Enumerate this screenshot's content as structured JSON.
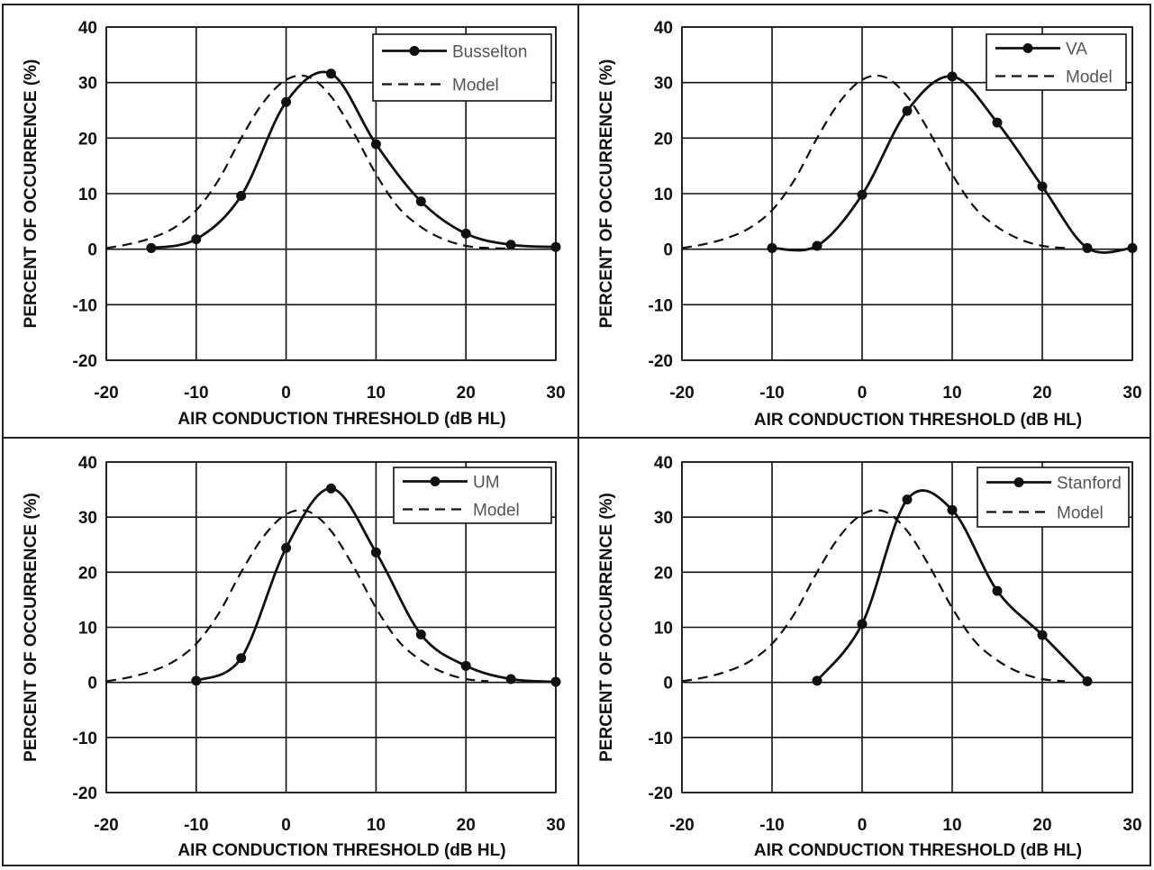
{
  "chart_data": [
    {
      "type": "line",
      "xlabel": "AIR CONDUCTION THRESHOLD (dB HL)",
      "ylabel": "PERCENT OF OCCURRENCE (%)",
      "xlim": [
        -20,
        30
      ],
      "ylim": [
        -20,
        40
      ],
      "x_ticks": [
        "-20",
        "-10",
        "0",
        "10",
        "20",
        "30"
      ],
      "y_ticks": [
        "40",
        "30",
        "20",
        "10",
        "0",
        "-10",
        "-20"
      ],
      "grid": true,
      "legend": "top-right",
      "series": [
        {
          "name": "Busselton",
          "style": "solid-markers",
          "x": [
            -15,
            -10,
            -5,
            0,
            5,
            10,
            15,
            20,
            25,
            30
          ],
          "y": [
            0.2,
            1.8,
            9.6,
            26.5,
            31.6,
            18.9,
            8.6,
            2.8,
            0.8,
            0.4
          ]
        },
        {
          "name": "Model",
          "style": "dashed",
          "x": [
            -20,
            -17.5,
            -15,
            -12.5,
            -10,
            -7.5,
            -5,
            -2.5,
            0,
            2.5,
            5,
            7.5,
            10,
            12.5,
            15,
            17.5,
            20,
            22.5,
            25
          ],
          "y": [
            0.2,
            0.9,
            2.0,
            3.8,
            7.0,
            12.5,
            20.0,
            26.5,
            30.5,
            31.0,
            27.5,
            21.0,
            13.5,
            7.5,
            4.0,
            1.8,
            0.6,
            0.2,
            0.1
          ]
        }
      ]
    },
    {
      "type": "line",
      "xlabel": "AIR CONDUCTION THRESHOLD (dB HL)",
      "ylabel": "PERCENT OF OCCURRENCE (%)",
      "xlim": [
        -20,
        30
      ],
      "ylim": [
        -20,
        40
      ],
      "x_ticks": [
        "-20",
        "-10",
        "0",
        "10",
        "20",
        "30"
      ],
      "y_ticks": [
        "40",
        "30",
        "20",
        "10",
        "0",
        "-10",
        "-20"
      ],
      "grid": true,
      "legend": "top-right",
      "series": [
        {
          "name": "VA",
          "style": "solid-markers",
          "x": [
            -10,
            -5,
            0,
            5,
            10,
            15,
            20,
            25,
            30
          ],
          "y": [
            0.2,
            0.6,
            9.8,
            24.9,
            31.1,
            22.8,
            11.3,
            0.2,
            0.2
          ]
        },
        {
          "name": "Model",
          "style": "dashed",
          "x": [
            -20,
            -17.5,
            -15,
            -12.5,
            -10,
            -7.5,
            -5,
            -2.5,
            0,
            2.5,
            5,
            7.5,
            10,
            12.5,
            15,
            17.5,
            20,
            22.5
          ],
          "y": [
            0.2,
            0.9,
            2.0,
            3.8,
            7.0,
            12.5,
            20.0,
            26.5,
            30.5,
            31.0,
            27.5,
            21.0,
            13.5,
            7.5,
            4.0,
            1.8,
            0.6,
            0.2
          ]
        }
      ]
    },
    {
      "type": "line",
      "xlabel": "AIR CONDUCTION THRESHOLD (dB HL)",
      "ylabel": "PERCENT OF OCCURRENCE (%)",
      "xlim": [
        -20,
        30
      ],
      "ylim": [
        -20,
        40
      ],
      "x_ticks": [
        "-20",
        "-10",
        "0",
        "10",
        "20",
        "30"
      ],
      "y_ticks": [
        "40",
        "30",
        "20",
        "10",
        "0",
        "-10",
        "-20"
      ],
      "grid": true,
      "legend": "top-right",
      "series": [
        {
          "name": "UM",
          "style": "solid-markers",
          "x": [
            -10,
            -5,
            0,
            5,
            10,
            15,
            20,
            25,
            30
          ],
          "y": [
            0.3,
            4.4,
            24.4,
            35.2,
            23.6,
            8.7,
            3.0,
            0.6,
            0.1
          ]
        },
        {
          "name": "Model",
          "style": "dashed",
          "x": [
            -20,
            -17.5,
            -15,
            -12.5,
            -10,
            -7.5,
            -5,
            -2.5,
            0,
            2.5,
            5,
            7.5,
            10,
            12.5,
            15,
            17.5,
            20,
            22.5
          ],
          "y": [
            0.2,
            0.9,
            2.0,
            3.8,
            7.0,
            12.5,
            20.0,
            26.5,
            30.5,
            31.0,
            27.5,
            21.0,
            13.5,
            7.5,
            4.0,
            1.8,
            0.6,
            0.2
          ]
        }
      ]
    },
    {
      "type": "line",
      "xlabel": "AIR CONDUCTION THRESHOLD (dB HL)",
      "ylabel": "PERCENT OF OCCURRENCE (%)",
      "xlim": [
        -20,
        30
      ],
      "ylim": [
        -20,
        40
      ],
      "x_ticks": [
        "-20",
        "-10",
        "0",
        "10",
        "20",
        "30"
      ],
      "y_ticks": [
        "40",
        "30",
        "20",
        "10",
        "0",
        "-10",
        "-20"
      ],
      "grid": true,
      "legend": "top-right",
      "series": [
        {
          "name": "Stanford",
          "style": "solid-markers",
          "x": [
            -5,
            0,
            5,
            10,
            15,
            20,
            25
          ],
          "y": [
            0.3,
            10.6,
            33.2,
            31.3,
            16.6,
            8.6,
            0.2
          ]
        },
        {
          "name": "Model",
          "style": "dashed",
          "x": [
            -20,
            -17.5,
            -15,
            -12.5,
            -10,
            -7.5,
            -5,
            -2.5,
            0,
            2.5,
            5,
            7.5,
            10,
            12.5,
            15,
            17.5,
            20,
            22.5
          ],
          "y": [
            0.2,
            0.9,
            2.0,
            3.8,
            7.0,
            12.5,
            20.0,
            26.5,
            30.5,
            31.0,
            27.5,
            21.0,
            13.5,
            7.5,
            4.0,
            1.8,
            0.6,
            0.2
          ]
        }
      ]
    }
  ]
}
